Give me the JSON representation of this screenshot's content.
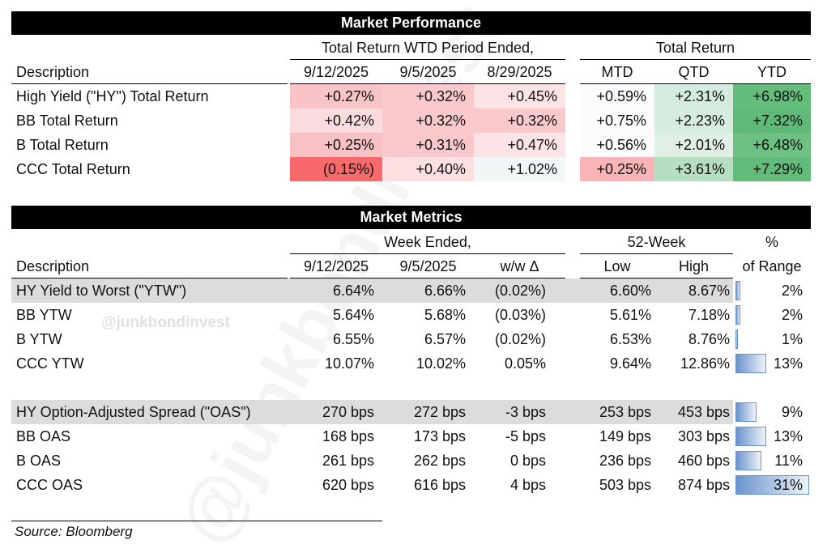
{
  "watermark": "@junkbondinvest",
  "performance": {
    "title": "Market Performance",
    "group1": "Total Return WTD Period Ended,",
    "group2": "Total Return",
    "headers": [
      "Description",
      "9/12/2025",
      "9/5/2025",
      "8/29/2025",
      "MTD",
      "QTD",
      "YTD"
    ],
    "rows": [
      {
        "label": "High Yield (\"HY\") Total Return",
        "values": [
          "+0.27%",
          "+0.32%",
          "+0.45%",
          "+0.59%",
          "+2.31%",
          "+6.98%"
        ],
        "colors": [
          "#f8c4c6",
          "#f9c9cb",
          "#fce3e5",
          "#fbfbfe",
          "#d4ecdd",
          "#63be7b"
        ]
      },
      {
        "label": "BB Total Return",
        "values": [
          "+0.42%",
          "+0.32%",
          "+0.32%",
          "+0.75%",
          "+2.23%",
          "+7.32%"
        ],
        "colors": [
          "#fbdcde",
          "#f9c9cb",
          "#f9c9cb",
          "#fcfcff",
          "#d6ecdf",
          "#5fba77"
        ]
      },
      {
        "label": "B Total Return",
        "values": [
          "+0.25%",
          "+0.31%",
          "+0.47%",
          "+0.56%",
          "+2.01%",
          "+6.48%"
        ],
        "colors": [
          "#f8c1c3",
          "#f9c8ca",
          "#fce4e6",
          "#fbfbfe",
          "#e0f0e6",
          "#6dc283"
        ]
      },
      {
        "label": "CCC Total Return",
        "values": [
          "(0.15%)",
          "+0.40%",
          "+1.02%",
          "+0.25%",
          "+3.61%",
          "+7.29%"
        ],
        "colors": [
          "#f8696b",
          "#fcdfe1",
          "#f1f7f6",
          "#f8b4b6",
          "#b6dfc2",
          "#61bc79"
        ]
      }
    ]
  },
  "metrics": {
    "title": "Market Metrics",
    "group1": "Week Ended,",
    "group2": "52-Week",
    "group3": "%",
    "headers": [
      "Description",
      "9/12/2025",
      "9/5/2025",
      "w/w Δ",
      "Low",
      "High",
      "of Range"
    ],
    "bar_color": "#6a93cc",
    "highlight_color": "#dcdcdc",
    "rows": [
      {
        "label": "HY Yield to Worst (\"YTW\")",
        "values": [
          "6.64%",
          "6.66%",
          "(0.02%)",
          "6.60%",
          "8.67%"
        ],
        "pct": "2%",
        "pct_value": 2,
        "highlight": true
      },
      {
        "label": "BB YTW",
        "values": [
          "5.64%",
          "5.68%",
          "(0.03%)",
          "5.61%",
          "7.18%"
        ],
        "pct": "2%",
        "pct_value": 2
      },
      {
        "label": "B YTW",
        "values": [
          "6.55%",
          "6.57%",
          "(0.02%)",
          "6.53%",
          "8.76%"
        ],
        "pct": "1%",
        "pct_value": 1
      },
      {
        "label": "CCC YTW",
        "values": [
          "10.07%",
          "10.02%",
          "0.05%",
          "9.64%",
          "12.86%"
        ],
        "pct": "13%",
        "pct_value": 13
      },
      null,
      {
        "label": "HY Option-Adjusted Spread (\"OAS\")",
        "values": [
          "270 bps",
          "272 bps",
          "-3 bps",
          "253 bps",
          "453 bps"
        ],
        "pct": "9%",
        "pct_value": 9,
        "highlight": true
      },
      {
        "label": "BB OAS",
        "values": [
          "168 bps",
          "173 bps",
          "-5 bps",
          "149 bps",
          "303 bps"
        ],
        "pct": "13%",
        "pct_value": 13
      },
      {
        "label": "B OAS",
        "values": [
          "261 bps",
          "262 bps",
          "0 bps",
          "236 bps",
          "460 bps"
        ],
        "pct": "11%",
        "pct_value": 11
      },
      {
        "label": "CCC OAS",
        "values": [
          "620 bps",
          "616 bps",
          "4 bps",
          "503 bps",
          "874 bps"
        ],
        "pct": "31%",
        "pct_value": 31
      }
    ]
  },
  "source": "Source: Bloomberg"
}
